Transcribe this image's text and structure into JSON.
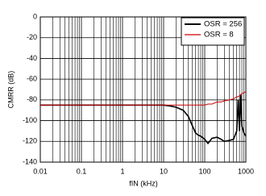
{
  "chart_data": {
    "type": "line",
    "xlabel": "fIN (kHz)",
    "ylabel": "CMRR (dB)",
    "xscale": "log",
    "grid": true,
    "legend": "upper right",
    "xlim": [
      0.01,
      1000
    ],
    "xticks": [
      0.01,
      0.1,
      1,
      10,
      100,
      1000
    ],
    "ylim": [
      -140,
      0
    ],
    "yticks": [
      0,
      -20,
      -40,
      -60,
      -80,
      -100,
      -120,
      -140
    ],
    "x": [
      0.01,
      0.1,
      1,
      5,
      10,
      15,
      20,
      30,
      40,
      50,
      60,
      70,
      80,
      100,
      120,
      150,
      200,
      250,
      300,
      400,
      500,
      600,
      650,
      700,
      750,
      800,
      900,
      1000
    ],
    "series": [
      {
        "name": "OSR = 256",
        "color": "#000000",
        "values": [
          -85,
          -85,
          -85,
          -85,
          -85,
          -86,
          -87,
          -90,
          -96,
          -105,
          -112,
          -114,
          -115,
          -118,
          -122,
          -117,
          -116,
          -118,
          -120,
          -119,
          -118,
          -110,
          -80,
          -110,
          -75,
          -105,
          -112,
          -115
        ]
      },
      {
        "name": "OSR = 8",
        "color": "#cc0000",
        "values": [
          -85,
          -85,
          -85,
          -85,
          -85,
          -85,
          -85,
          -85,
          -85,
          -85,
          -85,
          -85,
          -85,
          -85,
          -84,
          -84,
          -82,
          -82,
          -81,
          -80,
          -79,
          -77,
          -77,
          -76,
          -75,
          -74,
          -73,
          -72
        ]
      }
    ]
  }
}
